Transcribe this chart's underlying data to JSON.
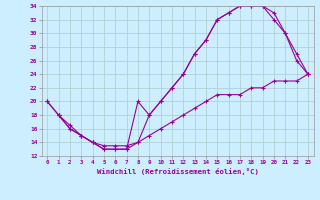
{
  "xlabel": "Windchill (Refroidissement éolien,°C)",
  "bg_color": "#cceeff",
  "grid_color": "#aacccc",
  "line_color": "#990099",
  "marker": "+",
  "xlim": [
    -0.5,
    23.5
  ],
  "ylim": [
    12,
    34
  ],
  "xticks": [
    0,
    1,
    2,
    3,
    4,
    5,
    6,
    7,
    8,
    9,
    10,
    11,
    12,
    13,
    14,
    15,
    16,
    17,
    18,
    19,
    20,
    21,
    22,
    23
  ],
  "yticks": [
    12,
    14,
    16,
    18,
    20,
    22,
    24,
    26,
    28,
    30,
    32,
    34
  ],
  "curve1_x": [
    0,
    1,
    2,
    3,
    4,
    5,
    6,
    7,
    8,
    9,
    10,
    11,
    12,
    13,
    14,
    15,
    16,
    17,
    18,
    19,
    20,
    21,
    22,
    23
  ],
  "curve1_y": [
    20,
    18,
    16,
    15,
    14,
    13,
    13,
    13,
    14,
    18,
    20,
    22,
    24,
    27,
    29,
    32,
    33,
    34,
    34,
    34,
    33,
    30,
    26,
    24
  ],
  "curve2_x": [
    1,
    2,
    3,
    4,
    5,
    6,
    7,
    8,
    9,
    10,
    11,
    12,
    13,
    14,
    15,
    16,
    17,
    18,
    19,
    20,
    21,
    22,
    23
  ],
  "curve2_y": [
    18,
    16,
    15,
    14,
    13,
    13,
    13,
    20,
    18,
    20,
    22,
    24,
    27,
    29,
    32,
    33,
    34,
    34,
    34,
    32,
    30,
    27,
    24
  ],
  "curve3_x": [
    0,
    1,
    2,
    3,
    4,
    5,
    6,
    7,
    8,
    9,
    10,
    11,
    12,
    13,
    14,
    15,
    16,
    17,
    18,
    19,
    20,
    21,
    22,
    23
  ],
  "curve3_y": [
    20,
    18,
    16.5,
    15,
    14,
    13.5,
    13.5,
    13.5,
    14,
    15,
    16,
    17,
    18,
    19,
    20,
    21,
    21,
    21,
    22,
    22,
    23,
    23,
    23,
    24
  ]
}
